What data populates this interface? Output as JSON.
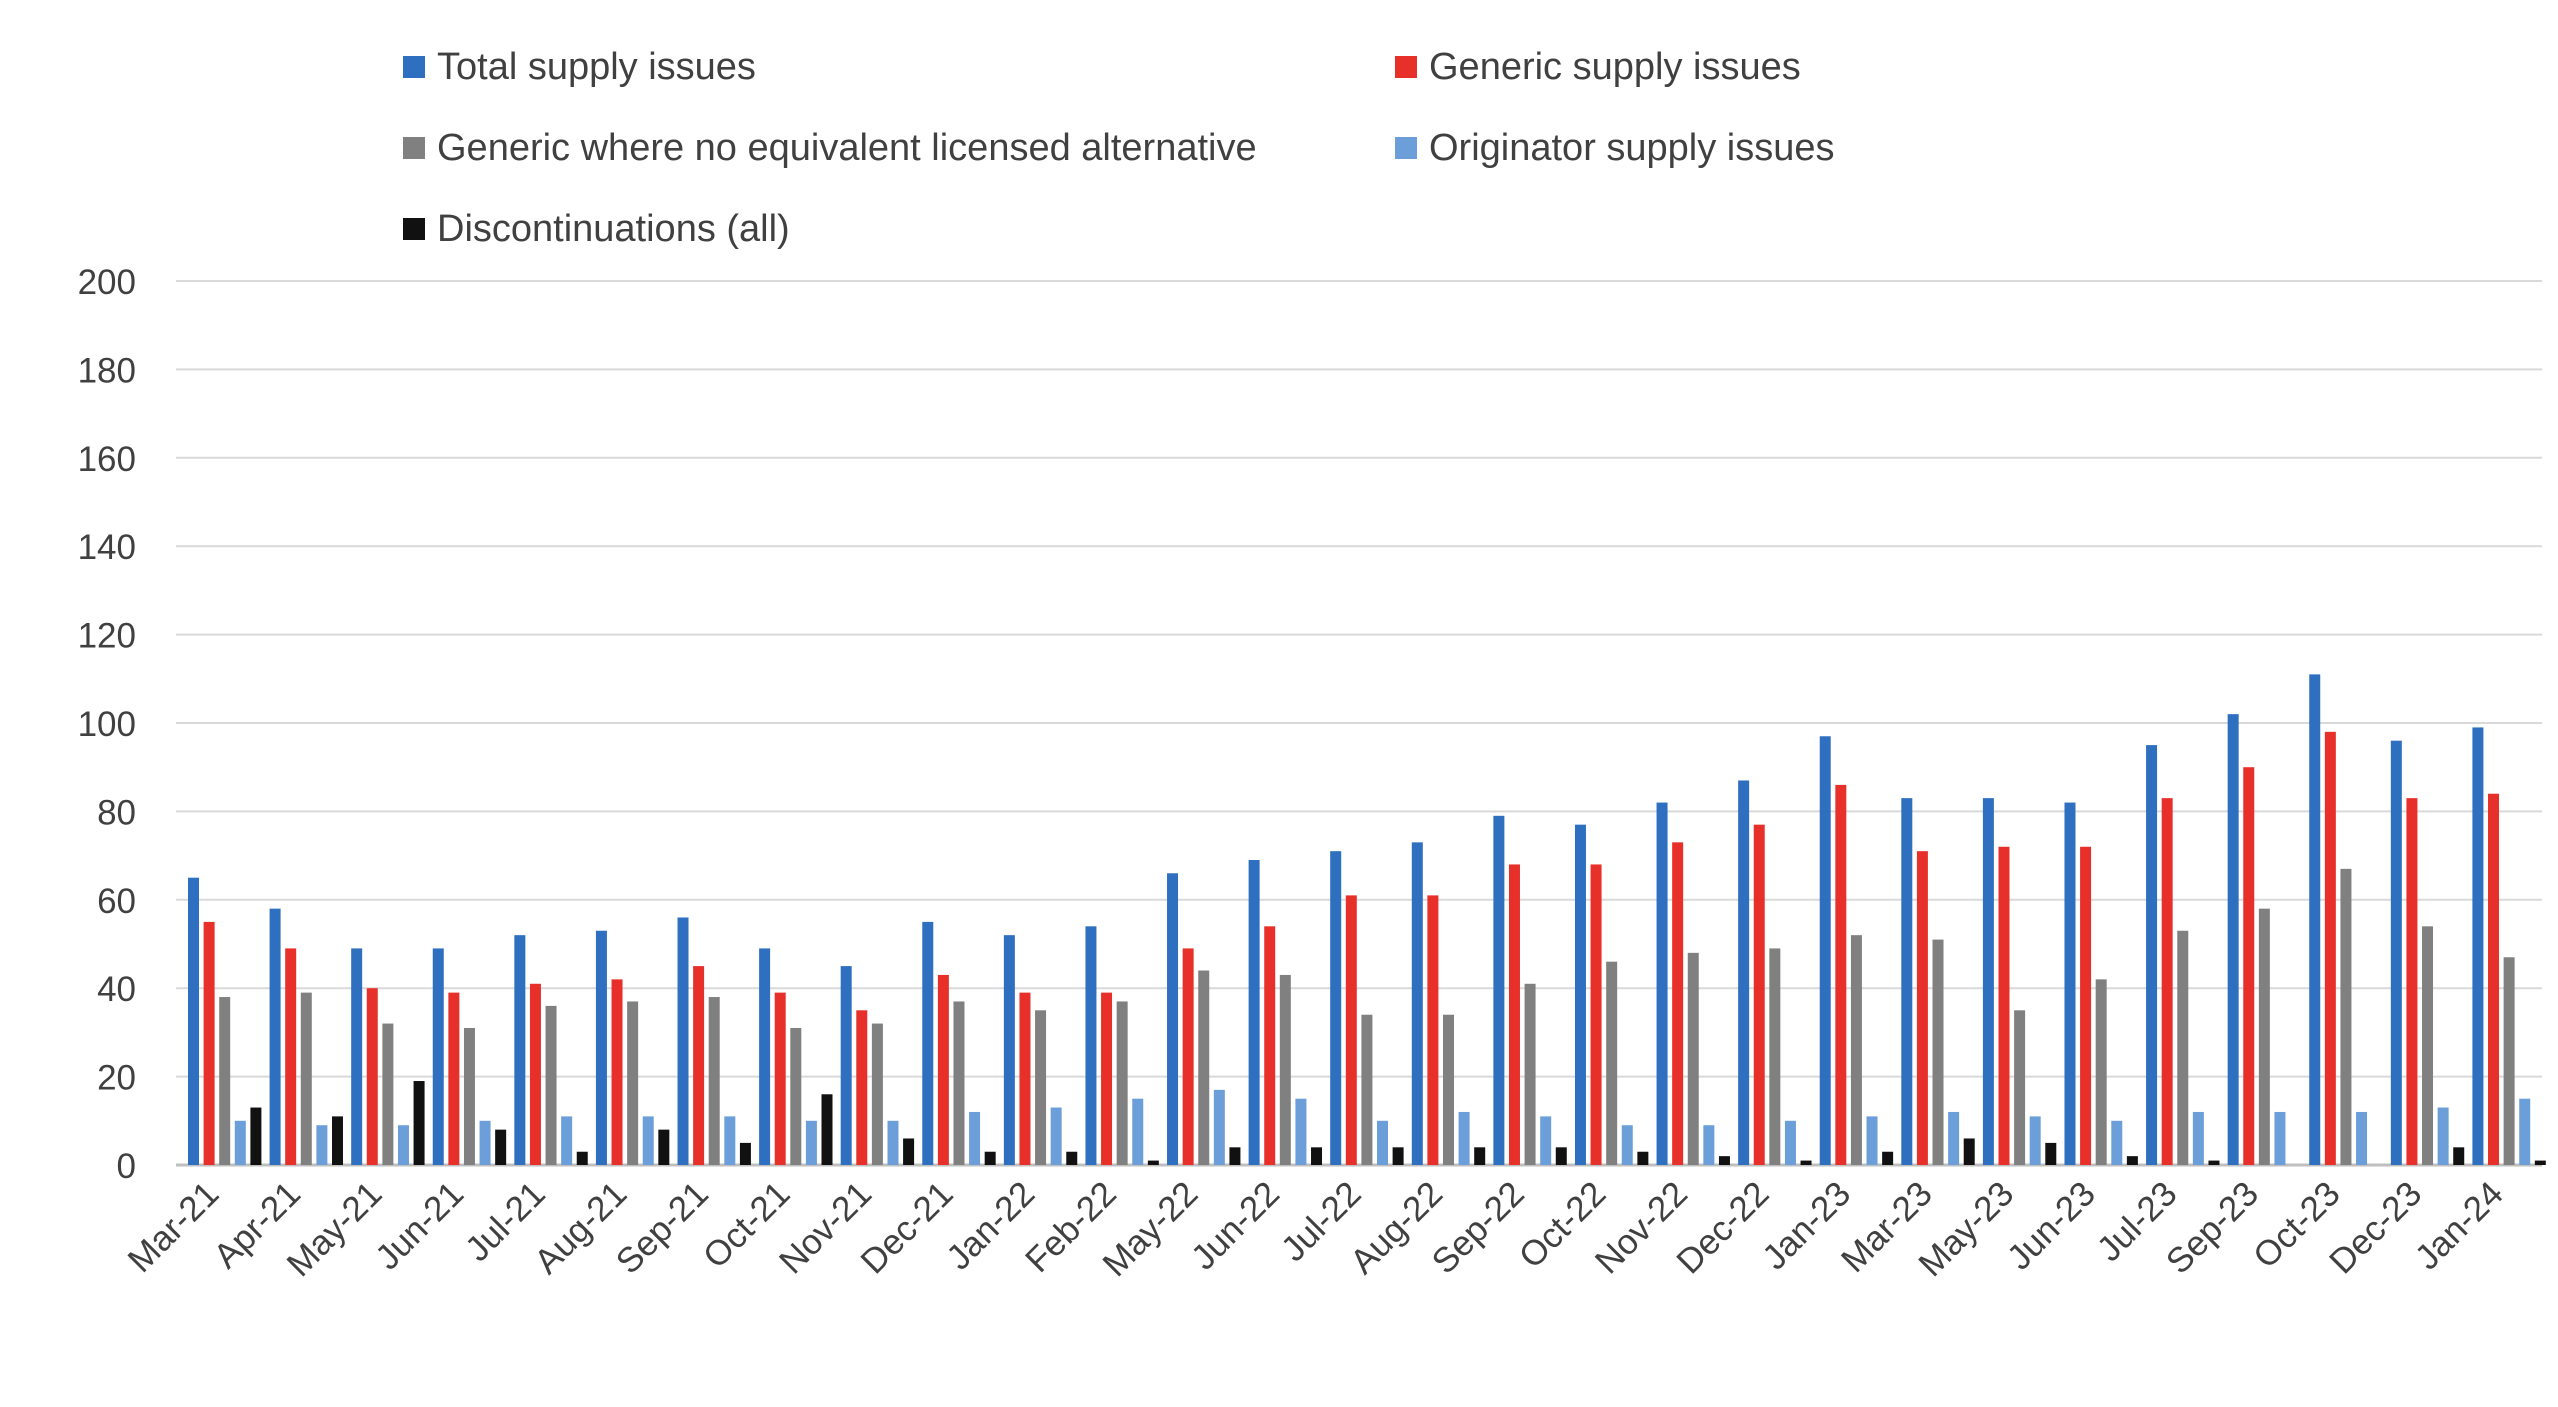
{
  "chart_data": {
    "type": "bar",
    "title": "",
    "xlabel": "",
    "ylabel": "",
    "ylim": [
      0,
      200
    ],
    "yticks": [
      "0",
      "20",
      "40",
      "60",
      "80",
      "100",
      "120",
      "140",
      "160",
      "180",
      "200"
    ],
    "grid": true,
    "legend_position": "top",
    "categories": [
      "Mar-21",
      "Apr-21",
      "May-21",
      "Jun-21",
      "Jul-21",
      "Aug-21",
      "Sep-21",
      "Oct-21",
      "Nov-21",
      "Dec-21",
      "Jan-22",
      "Feb-22",
      "May-22",
      "Jun-22",
      "Jul-22",
      "Aug-22",
      "Sep-22",
      "Oct-22",
      "Nov-22",
      "Dec-22",
      "Jan-23",
      "Mar-23",
      "May-23",
      "Jun-23",
      "Jul-23",
      "Sep-23",
      "Oct-23",
      "Dec-23",
      "Jan-24"
    ],
    "series": [
      {
        "name": "Total supply issues",
        "color": "#2E6FBF",
        "values": [
          65,
          58,
          49,
          49,
          52,
          53,
          56,
          49,
          45,
          55,
          52,
          54,
          66,
          69,
          71,
          73,
          79,
          77,
          82,
          87,
          97,
          83,
          83,
          82,
          95,
          102,
          111,
          96,
          99
        ]
      },
      {
        "name": "Generic supply issues",
        "color": "#E8302A",
        "values": [
          55,
          49,
          40,
          39,
          41,
          42,
          45,
          39,
          35,
          43,
          39,
          39,
          49,
          54,
          61,
          61,
          68,
          68,
          73,
          77,
          86,
          71,
          72,
          72,
          83,
          90,
          98,
          83,
          84
        ]
      },
      {
        "name": "Generic where no equivalent licensed alternative",
        "color": "#808080",
        "values": [
          38,
          39,
          32,
          31,
          36,
          37,
          38,
          31,
          32,
          37,
          35,
          37,
          44,
          43,
          34,
          34,
          41,
          46,
          48,
          49,
          52,
          51,
          35,
          42,
          53,
          58,
          67,
          54,
          47
        ]
      },
      {
        "name": "Originator supply issues",
        "color": "#6C9FDA",
        "values": [
          10,
          9,
          9,
          10,
          11,
          11,
          11,
          10,
          10,
          12,
          13,
          15,
          17,
          15,
          10,
          12,
          11,
          9,
          9,
          10,
          11,
          12,
          11,
          10,
          12,
          12,
          12,
          13,
          15
        ]
      },
      {
        "name": "Discontinuations (all)",
        "color": "#111111",
        "values": [
          13,
          11,
          19,
          8,
          3,
          8,
          5,
          16,
          6,
          3,
          3,
          1,
          4,
          4,
          4,
          4,
          4,
          3,
          2,
          1,
          3,
          6,
          5,
          2,
          1,
          0,
          0,
          4,
          1
        ]
      }
    ]
  }
}
